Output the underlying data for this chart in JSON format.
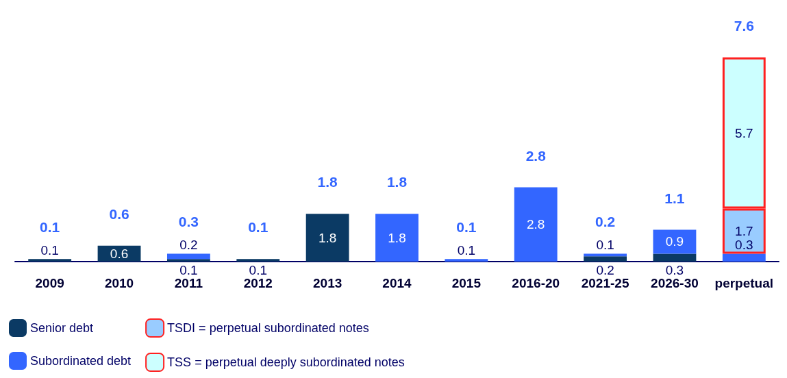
{
  "chart_data": {
    "type": "bar",
    "stacked": true,
    "data_labels": true,
    "legend": "bottom left",
    "categories": [
      "2009",
      "2010",
      "2011",
      "2012",
      "2013",
      "2014",
      "2015",
      "2016-20",
      "2021-25",
      "2026-30",
      "perpetual"
    ],
    "series": [
      {
        "name": "Senior debt",
        "color": "#0b3a64",
        "values": [
          0.1,
          0.6,
          0.1,
          0.1,
          1.8,
          null,
          null,
          null,
          0.2,
          0.3,
          null
        ]
      },
      {
        "name": "Subordinated debt",
        "color": "#3366ff",
        "values": [
          null,
          null,
          0.2,
          null,
          null,
          1.8,
          0.1,
          2.8,
          0.1,
          0.9,
          0.3
        ]
      },
      {
        "name": "TSDI = perpetual subordinated notes",
        "color": "#99ccff",
        "values": [
          null,
          null,
          null,
          null,
          null,
          null,
          null,
          null,
          null,
          null,
          1.7
        ]
      },
      {
        "name": "TSS = perpetual deeply subordinated notes",
        "color": "#ccffff",
        "values": [
          null,
          null,
          null,
          null,
          null,
          null,
          null,
          null,
          null,
          null,
          5.7
        ]
      }
    ],
    "totals": [
      "0.1",
      "0.6",
      "0.3",
      "0.1",
      "1.8",
      "1.8",
      "0.1",
      "2.8",
      "0.2",
      "1.1",
      "7.6"
    ]
  }
}
